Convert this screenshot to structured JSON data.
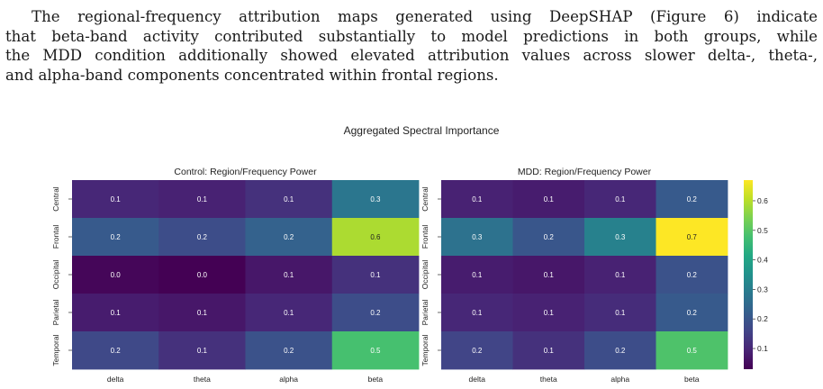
{
  "paragraph": {
    "lines": [
      "The regional-frequency attribution maps generated using DeepSHAP (Figure 6) indicate",
      "that beta-band activity contributed substantially to model predictions in both groups, while",
      "the MDD condition additionally showed elevated attribution values across slower delta-, theta-,",
      "and alpha-band components concentrated within frontal regions."
    ]
  },
  "figure": {
    "suptitle": "Aggregated Spectral Importance",
    "colormap": "viridis",
    "colorbar": {
      "min": 0.03,
      "max": 0.67,
      "ticks": [
        0.1,
        0.2,
        0.3,
        0.4,
        0.5,
        0.6
      ],
      "tick_labels": [
        "0.1",
        "0.2",
        "0.3",
        "0.4",
        "0.5",
        "0.6"
      ]
    }
  },
  "chart_data": [
    {
      "type": "heatmap",
      "title": "Control: Region/Frequency Power",
      "rows": [
        "Central",
        "Frontal",
        "Occipital",
        "Parietal",
        "Temporal"
      ],
      "columns": [
        "delta",
        "theta",
        "alpha",
        "beta"
      ],
      "values": [
        [
          0.1,
          0.09,
          0.12,
          0.28
        ],
        [
          0.21,
          0.18,
          0.23,
          0.59
        ],
        [
          0.04,
          0.03,
          0.07,
          0.12
        ],
        [
          0.08,
          0.07,
          0.1,
          0.18
        ],
        [
          0.17,
          0.12,
          0.19,
          0.48
        ]
      ],
      "labels": [
        [
          "0.1",
          "0.1",
          "0.1",
          "0.3"
        ],
        [
          "0.2",
          "0.2",
          "0.2",
          "0.6"
        ],
        [
          "0.0",
          "0.0",
          "0.1",
          "0.1"
        ],
        [
          "0.1",
          "0.1",
          "0.1",
          "0.2"
        ],
        [
          "0.2",
          "0.1",
          "0.2",
          "0.5"
        ]
      ]
    },
    {
      "type": "heatmap",
      "title": "MDD: Region/Frequency Power",
      "rows": [
        "Central",
        "Frontal",
        "Occipital",
        "Parietal",
        "Temporal"
      ],
      "columns": [
        "delta",
        "theta",
        "alpha",
        "beta"
      ],
      "values": [
        [
          0.09,
          0.08,
          0.1,
          0.21
        ],
        [
          0.27,
          0.2,
          0.31,
          0.67
        ],
        [
          0.08,
          0.07,
          0.09,
          0.19
        ],
        [
          0.1,
          0.09,
          0.11,
          0.21
        ],
        [
          0.16,
          0.12,
          0.18,
          0.49
        ]
      ],
      "labels": [
        [
          "0.1",
          "0.1",
          "0.1",
          "0.2"
        ],
        [
          "0.3",
          "0.2",
          "0.3",
          "0.7"
        ],
        [
          "0.1",
          "0.1",
          "0.1",
          "0.2"
        ],
        [
          "0.1",
          "0.1",
          "0.1",
          "0.2"
        ],
        [
          "0.2",
          "0.1",
          "0.2",
          "0.5"
        ]
      ]
    }
  ]
}
